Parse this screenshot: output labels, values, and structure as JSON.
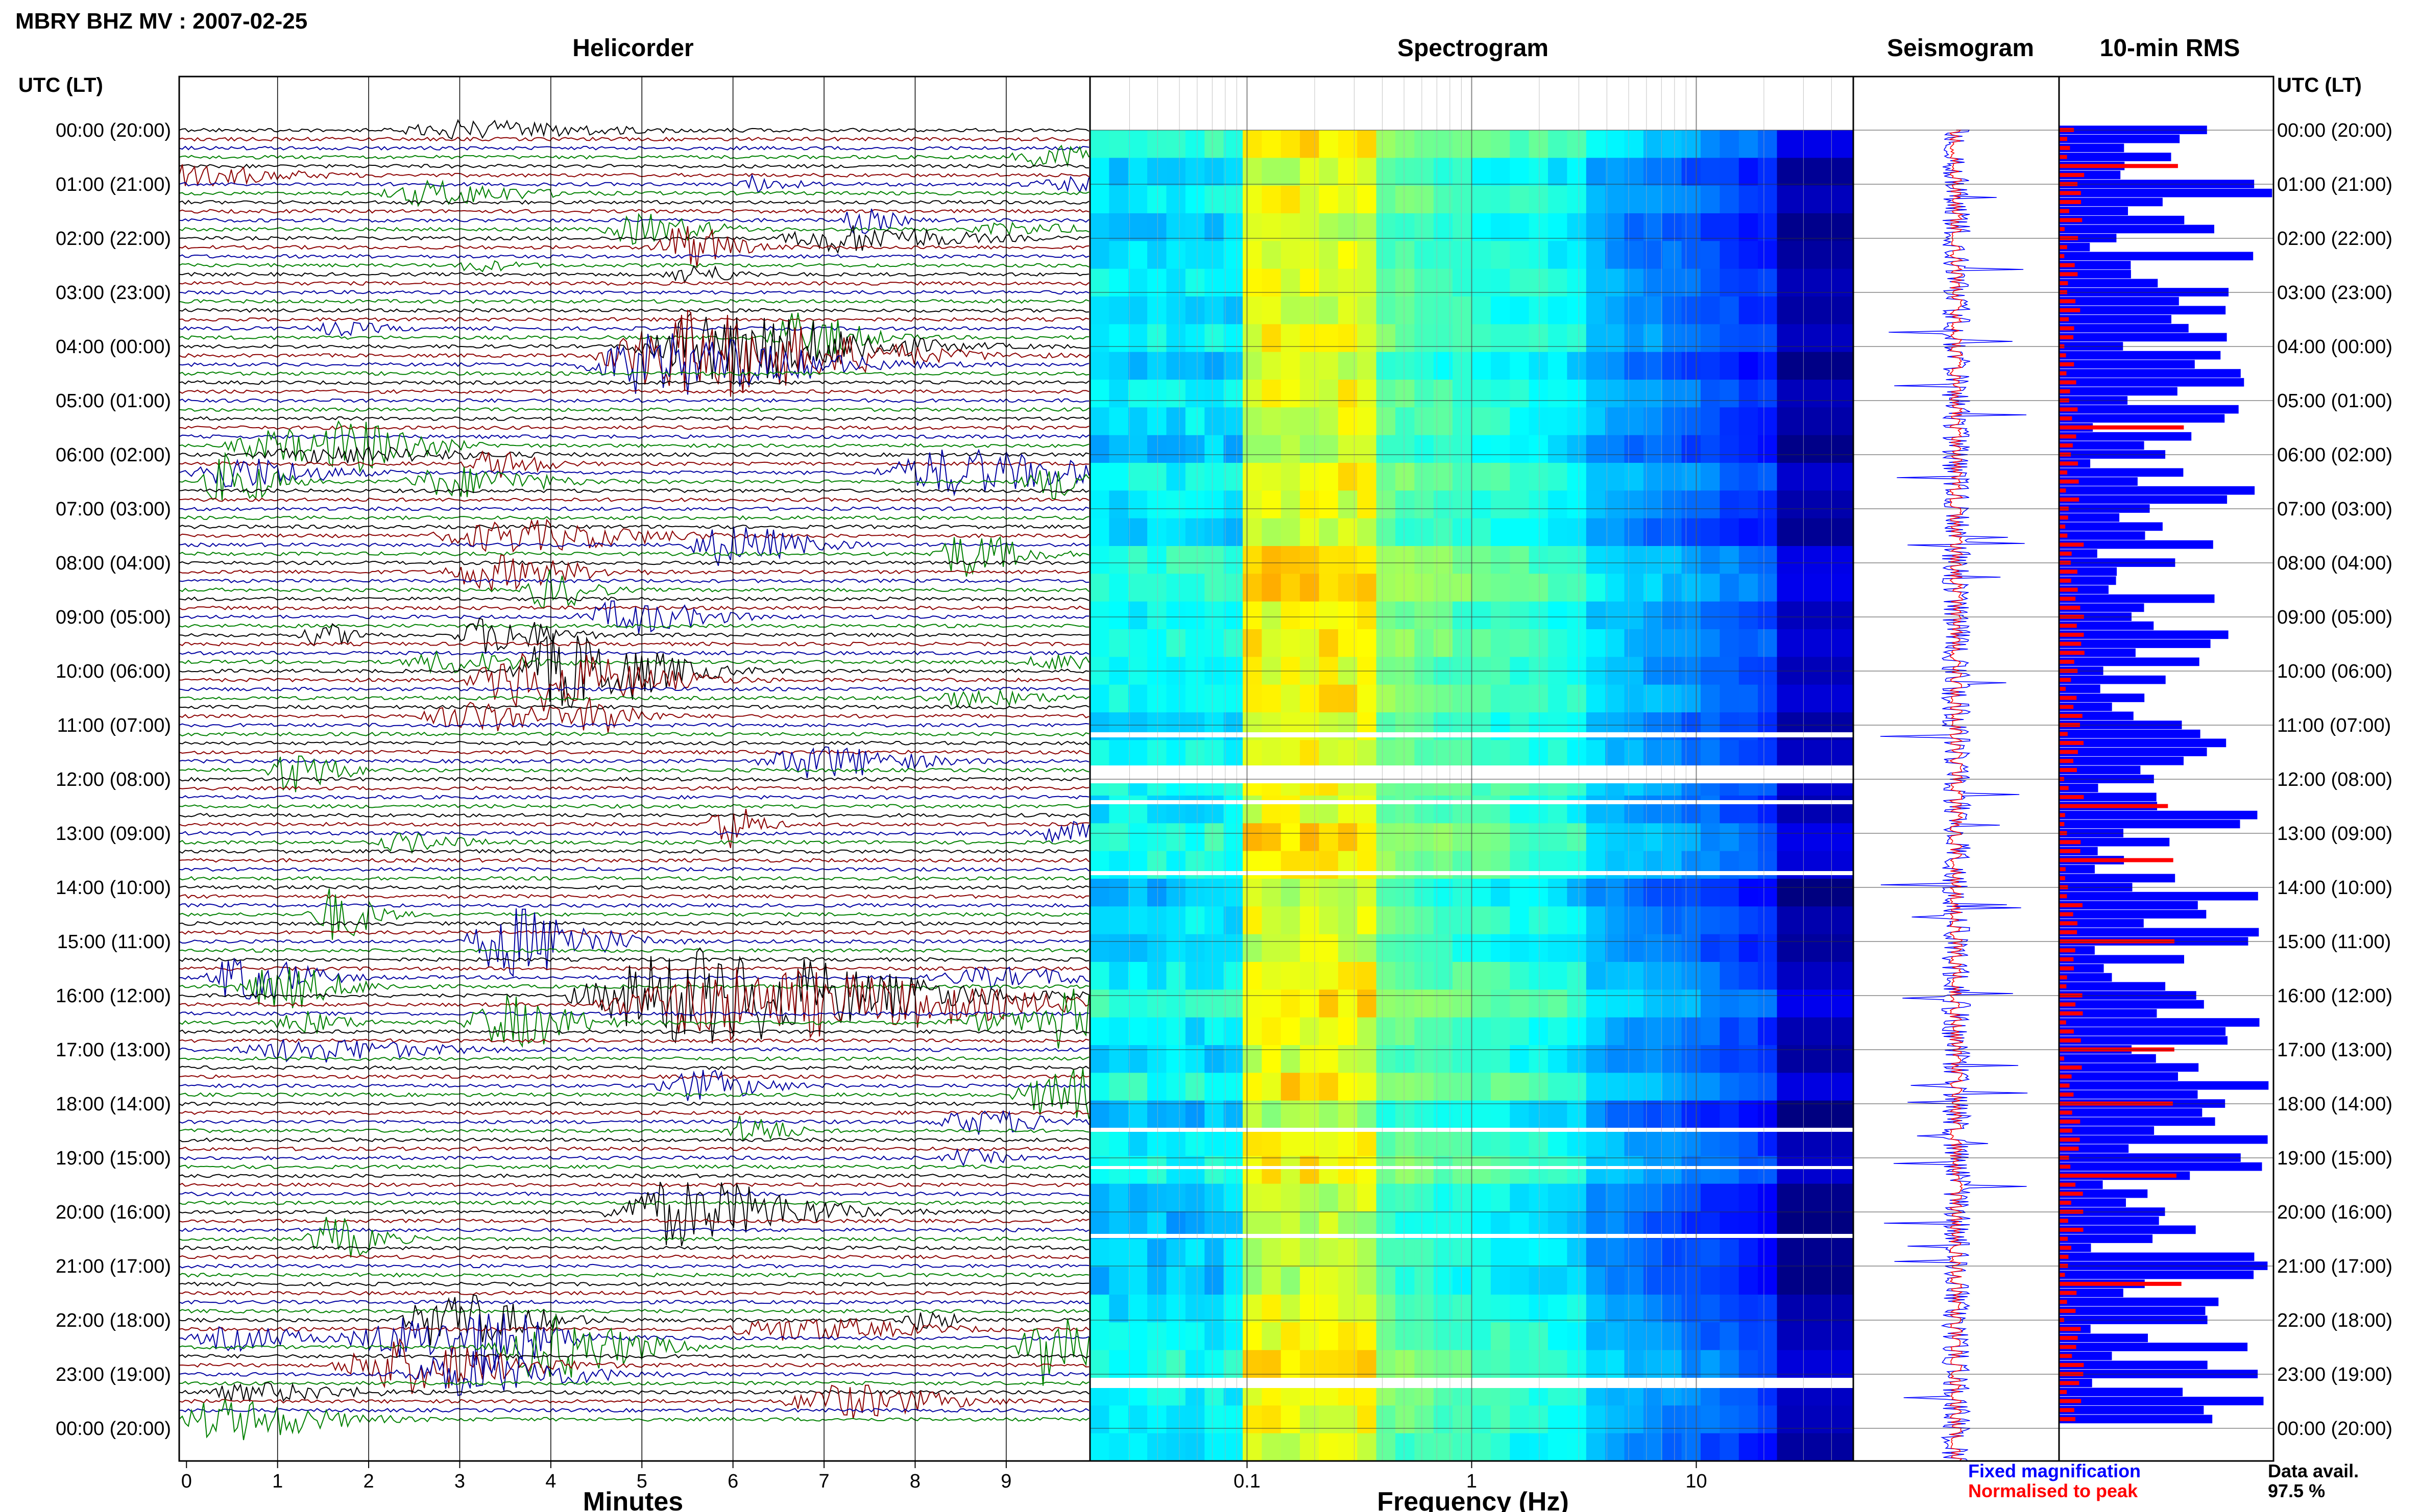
{
  "header": {
    "station_title": "MBRY BHZ MV : 2007-02-25",
    "utc_label_left": "UTC (LT)",
    "utc_label_right": "UTC (LT)"
  },
  "panels": {
    "helicorder": "Helicorder",
    "spectrogram": "Spectrogram",
    "seismogram": "Seismogram",
    "rms": "10-min RMS"
  },
  "axes": {
    "helicorder_xlabel": "Minutes",
    "spectrogram_xlabel": "Frequency (Hz)"
  },
  "legend": {
    "fixed": "Fixed magnification",
    "normalised": "Normalised to peak",
    "fixed_color": "#0000ff",
    "normalised_color": "#ff0000"
  },
  "availability": {
    "label": "Data avail.",
    "value": "97.5 %"
  },
  "chart_data": [
    {
      "type": "line",
      "name_on_chart": "Helicorder",
      "xlabel": "Minutes",
      "x_ticks": [
        0,
        1,
        2,
        3,
        4,
        5,
        6,
        7,
        8,
        9
      ],
      "xlim": [
        0,
        10
      ],
      "rows_per_hour": 6,
      "trace_colors": [
        "#000000",
        "#8b0000",
        "#0000a0",
        "#008000"
      ],
      "y_ticks": [
        "00:00 (20:00)",
        "01:00 (21:00)",
        "02:00 (22:00)",
        "03:00 (23:00)",
        "04:00 (00:00)",
        "05:00 (01:00)",
        "06:00 (02:00)",
        "07:00 (03:00)",
        "08:00 (04:00)",
        "09:00 (05:00)",
        "10:00 (06:00)",
        "11:00 (07:00)",
        "12:00 (08:00)",
        "13:00 (09:00)",
        "14:00 (10:00)",
        "15:00 (11:00)",
        "16:00 (12:00)",
        "17:00 (13:00)",
        "18:00 (14:00)",
        "19:00 (15:00)",
        "20:00 (16:00)",
        "21:00 (17:00)",
        "22:00 (18:00)",
        "23:00 (19:00)",
        "00:00 (20:00)"
      ]
    },
    {
      "type": "heatmap",
      "name_on_chart": "Spectrogram",
      "xlabel": "Frequency (Hz)",
      "x_scale": "log",
      "x_ticks": [
        "0.1",
        "1",
        "10"
      ],
      "xlim": [
        0.02,
        50
      ],
      "colormap": "jet"
    },
    {
      "type": "line",
      "name_on_chart": "Seismogram",
      "series": [
        {
          "name": "Fixed magnification",
          "color": "#0000ff"
        },
        {
          "name": "Normalised to peak",
          "color": "#ff0000"
        }
      ]
    },
    {
      "type": "bar",
      "name_on_chart": "10-min RMS",
      "orientation": "horizontal",
      "series": [
        {
          "name": "Fixed magnification",
          "color": "#0000ff"
        },
        {
          "name": "Normalised to peak",
          "color": "#ff0000"
        }
      ]
    }
  ]
}
